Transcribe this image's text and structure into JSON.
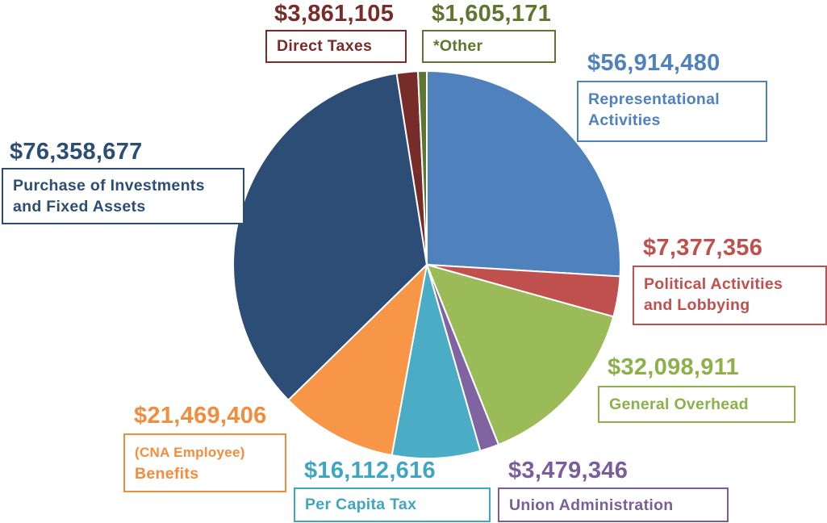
{
  "chart_data": {
    "type": "pie",
    "title": "",
    "start": "12 o'clock, clockwise",
    "slices": [
      {
        "label": "Representational Activities",
        "value": 56914480,
        "value_text": "$56,914,480",
        "color": "#4F81BD",
        "text_color": "#4F81BD"
      },
      {
        "label": "Political Activities and Lobbying",
        "value": 7377356,
        "value_text": "$7,377,356",
        "color": "#C0504D",
        "text_color": "#C0504D"
      },
      {
        "label": "General Overhead",
        "value": 32098911,
        "value_text": "$32,098,911",
        "color": "#9BBB59",
        "text_color": "#8DB04A"
      },
      {
        "label": "Union Administration",
        "value": 3479346,
        "value_text": "$3,479,346",
        "color": "#8064A2",
        "text_color": "#7A5E9C"
      },
      {
        "label": "Per Capita Tax",
        "value": 16112616,
        "value_text": "$16,112,616",
        "color": "#4BACC6",
        "text_color": "#3FA6C2"
      },
      {
        "label_small": "(CNA Employee)",
        "label": "Benefits",
        "value": 21469406,
        "value_text": "$21,469,406",
        "color": "#F79646",
        "text_color": "#F38C3C"
      },
      {
        "label": "Purchase of Investments and Fixed Assets",
        "value": 76358677,
        "value_text": "$76,358,677",
        "color": "#2C4D75",
        "text_color": "#2C4D75"
      },
      {
        "label": "Direct Taxes",
        "value": 3861105,
        "value_text": "$3,861,105",
        "color": "#772C2A",
        "text_color": "#772C2A"
      },
      {
        "label": "*Other",
        "value": 1605171,
        "value_text": "$1,605,171",
        "color": "#5F7530",
        "text_color": "#5F7530"
      }
    ]
  }
}
